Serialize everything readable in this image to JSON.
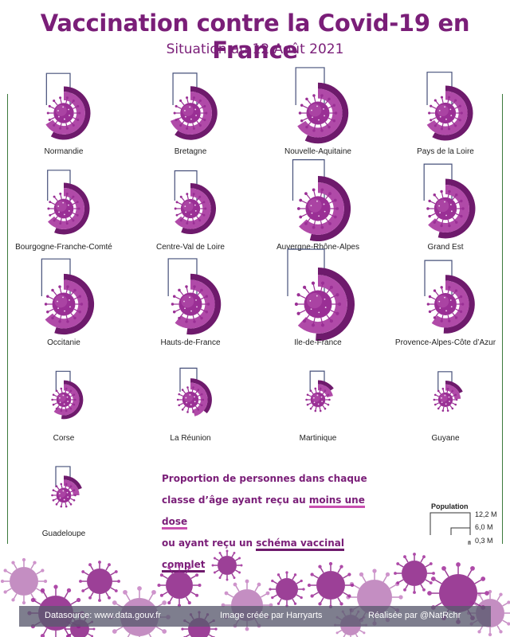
{
  "title": "Vaccination contre la Covid-19 en France",
  "subtitle": "Situation au 12 Août 2021",
  "legend": {
    "line1": "Proportion de personnes dans chaque",
    "line2_pre": "classe d’âge ayant reçu au ",
    "line2_hl": "moins une dose",
    "line3_pre": "ou ayant reçu un ",
    "line3_hl": "schéma vaccinal complet"
  },
  "population_legend": {
    "title": "Population",
    "values": [
      "12,2 M",
      "6,0 M",
      "0,3 M"
    ]
  },
  "footer": {
    "source": "Datasource: www.data.gouv.fr",
    "image_credit": "Image créée par Harryarts",
    "author": "Réalisée par @NatRchr"
  },
  "colors": {
    "title": "#7a1e78",
    "one_dose": "#b04aa8",
    "complete": "#6e1a6c",
    "pale": "#e8c6e4",
    "virus": "#9a2f95"
  },
  "chart_data": {
    "type": "radial-bar",
    "regions": [
      {
        "name": "Normandie",
        "population_m": 3.3,
        "one_dose": 0.66,
        "complete": 0.58
      },
      {
        "name": "Bretagne",
        "population_m": 3.4,
        "one_dose": 0.69,
        "complete": 0.6
      },
      {
        "name": "Nouvelle-Aquitaine",
        "population_m": 6.0,
        "one_dose": 0.66,
        "complete": 0.57
      },
      {
        "name": "Pays de la Loire",
        "population_m": 3.8,
        "one_dose": 0.66,
        "complete": 0.58
      },
      {
        "name": "Bourgogne-Franche-Comté",
        "population_m": 2.8,
        "one_dose": 0.64,
        "complete": 0.56
      },
      {
        "name": "Centre-Val de Loire",
        "population_m": 2.6,
        "one_dose": 0.64,
        "complete": 0.56
      },
      {
        "name": "Auvergne-Rhône-Alpes",
        "population_m": 8.0,
        "one_dose": 0.63,
        "complete": 0.54
      },
      {
        "name": "Grand Est",
        "population_m": 5.5,
        "one_dose": 0.63,
        "complete": 0.54
      },
      {
        "name": "Occitanie",
        "population_m": 5.9,
        "one_dose": 0.64,
        "complete": 0.55
      },
      {
        "name": "Hauts-de-France",
        "population_m": 6.0,
        "one_dose": 0.61,
        "complete": 0.52
      },
      {
        "name": "Ile-de-France",
        "population_m": 12.2,
        "one_dose": 0.62,
        "complete": 0.51
      },
      {
        "name": "Provence-Alpes-Côte d’Azur",
        "population_m": 5.1,
        "one_dose": 0.6,
        "complete": 0.51
      },
      {
        "name": "Corse",
        "population_m": 0.34,
        "one_dose": 0.61,
        "complete": 0.52
      },
      {
        "name": "La Réunion",
        "population_m": 0.86,
        "one_dose": 0.46,
        "complete": 0.36
      },
      {
        "name": "Martinique",
        "population_m": 0.36,
        "one_dose": 0.21,
        "complete": 0.15
      },
      {
        "name": "Guyane",
        "population_m": 0.29,
        "one_dose": 0.24,
        "complete": 0.18
      },
      {
        "name": "Guadeloupe",
        "population_m": 0.38,
        "one_dose": 0.25,
        "complete": 0.19
      }
    ]
  }
}
